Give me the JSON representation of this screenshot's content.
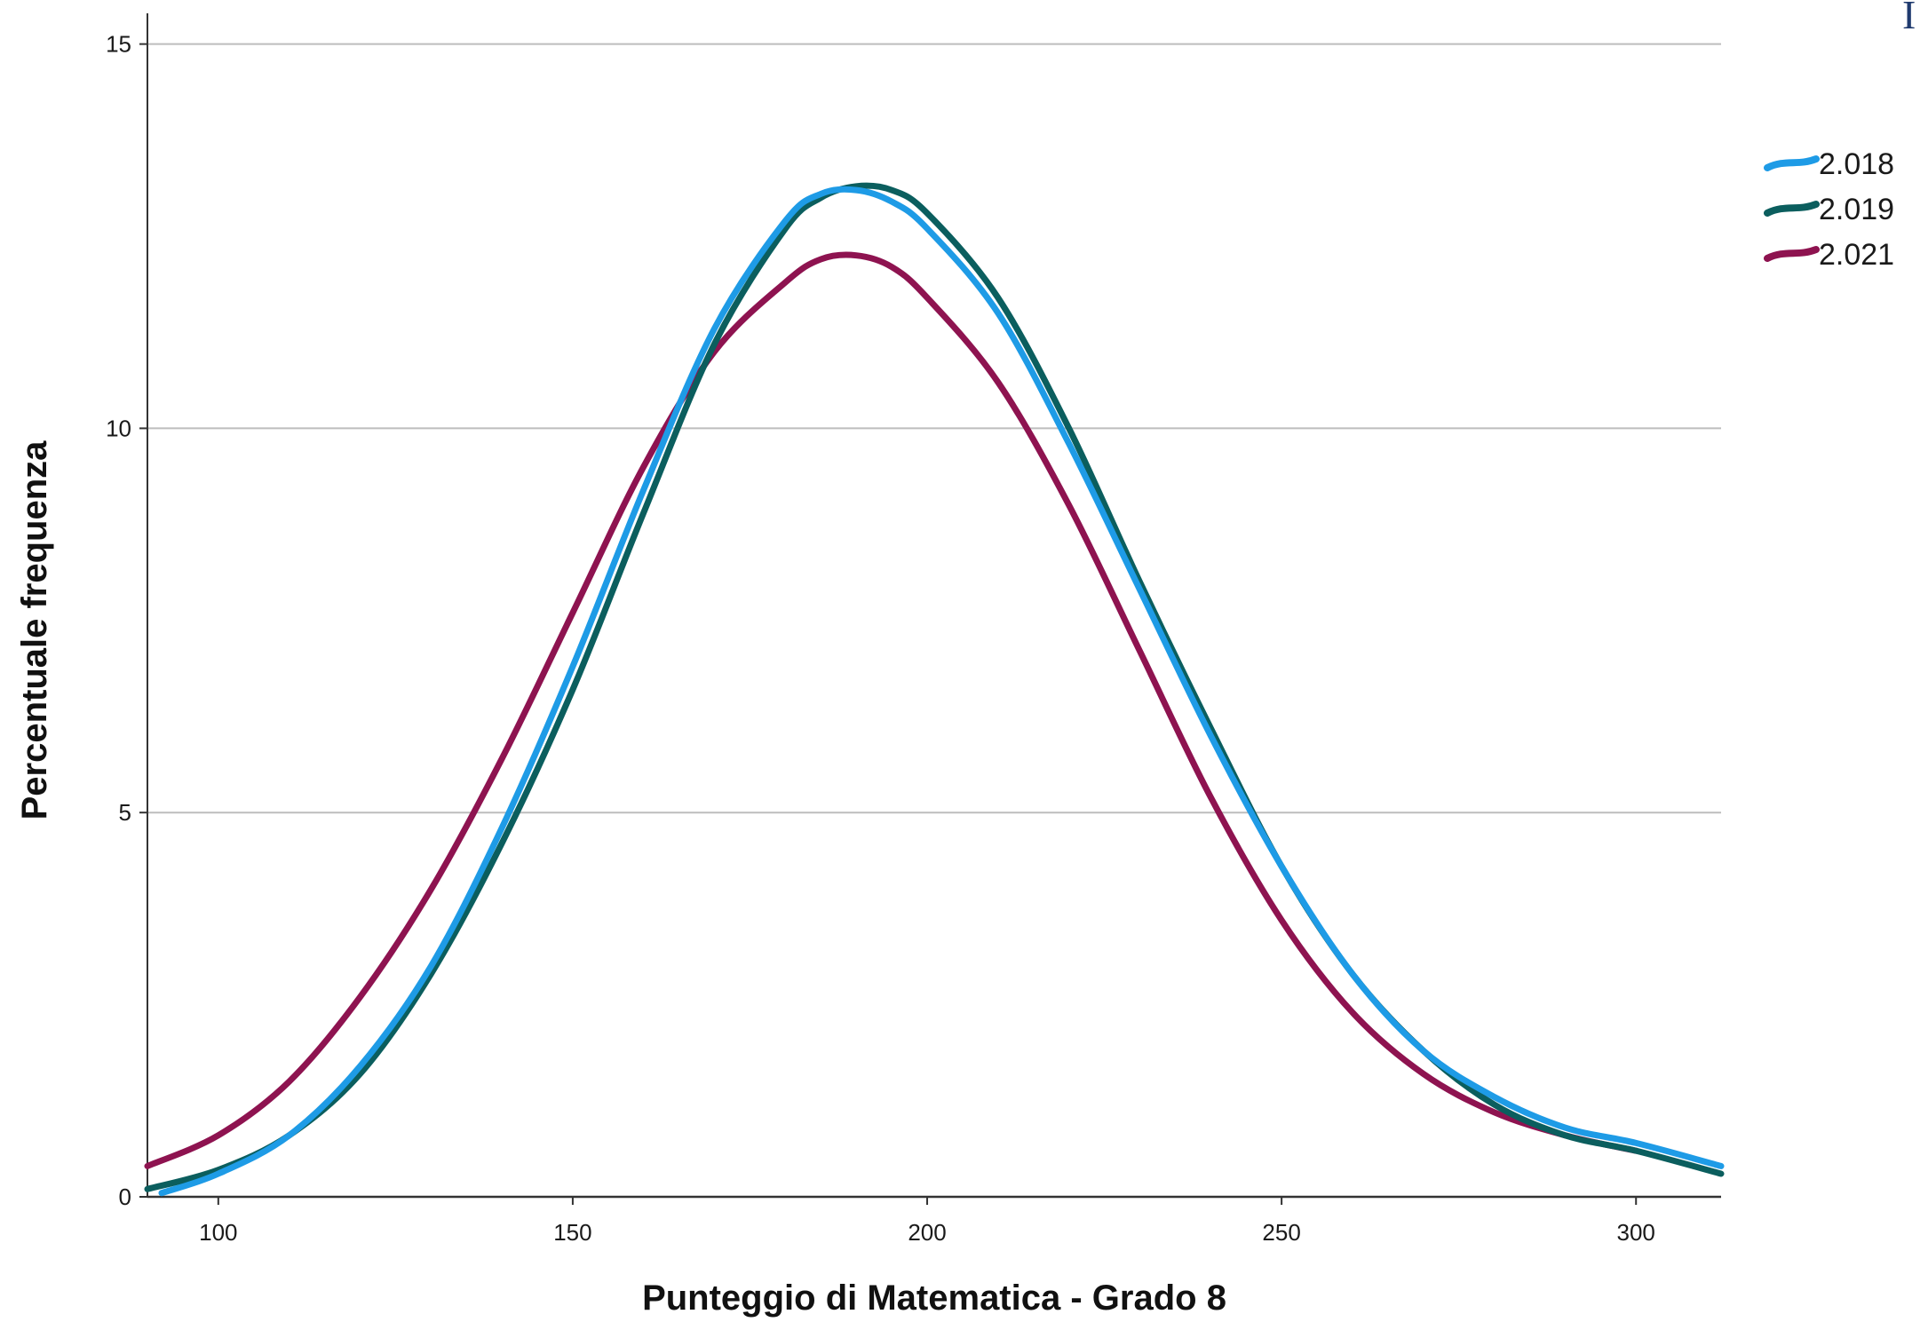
{
  "chart_data": {
    "type": "line",
    "title": "",
    "xlabel": "Punteggio di Matematica - Grado 8",
    "ylabel": "Percentuale frequenza",
    "xlim": [
      90,
      312
    ],
    "ylim": [
      0,
      15.4
    ],
    "x_ticks": [
      100,
      150,
      200,
      250,
      300
    ],
    "y_ticks": [
      0,
      5,
      10,
      15
    ],
    "grid": "horizontal",
    "legend_position": "top-right",
    "corner_text": "I",
    "series": [
      {
        "name": "2.018",
        "color": "#1e9be6",
        "x": [
          92,
          100,
          110,
          120,
          130,
          140,
          150,
          160,
          170,
          180,
          185,
          190,
          195,
          200,
          210,
          220,
          230,
          240,
          250,
          260,
          270,
          280,
          290,
          300,
          312
        ],
        "y": [
          0.05,
          0.3,
          0.8,
          1.7,
          3.0,
          4.8,
          6.9,
          9.2,
          11.3,
          12.7,
          13.05,
          13.1,
          12.95,
          12.6,
          11.5,
          9.8,
          7.9,
          6.0,
          4.3,
          2.9,
          1.9,
          1.3,
          0.9,
          0.7,
          0.4
        ]
      },
      {
        "name": "2.019",
        "color": "#0b5e5e",
        "x": [
          90,
          100,
          110,
          120,
          130,
          140,
          150,
          160,
          170,
          180,
          185,
          190,
          195,
          200,
          210,
          220,
          230,
          240,
          250,
          260,
          270,
          280,
          290,
          300,
          312
        ],
        "y": [
          0.1,
          0.35,
          0.8,
          1.6,
          2.9,
          4.6,
          6.6,
          8.9,
          11.1,
          12.6,
          13.0,
          13.15,
          13.1,
          12.8,
          11.7,
          10.0,
          8.0,
          6.1,
          4.3,
          2.9,
          1.9,
          1.2,
          0.8,
          0.6,
          0.3
        ]
      },
      {
        "name": "2.021",
        "color": "#8e1350",
        "x": [
          90,
          100,
          110,
          120,
          130,
          140,
          150,
          160,
          170,
          180,
          185,
          190,
          195,
          200,
          210,
          220,
          230,
          240,
          250,
          260,
          270,
          280,
          290,
          300
        ],
        "y": [
          0.4,
          0.8,
          1.5,
          2.6,
          4.0,
          5.7,
          7.6,
          9.5,
          11.0,
          11.9,
          12.2,
          12.25,
          12.1,
          11.7,
          10.6,
          9.0,
          7.1,
          5.2,
          3.6,
          2.4,
          1.6,
          1.1,
          0.8,
          0.6
        ]
      }
    ]
  }
}
